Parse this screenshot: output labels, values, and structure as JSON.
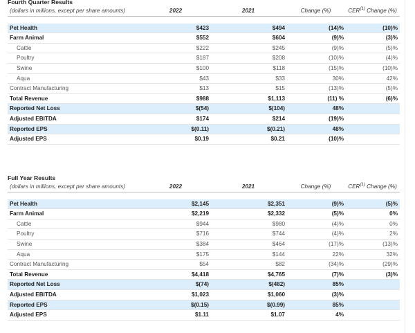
{
  "columns": {
    "y2022": "2022",
    "y2021": "2021",
    "change": "Change (%)",
    "cer_prefix": "CER",
    "cer_sup": "(1)",
    "cer_suffix": " Change (%)"
  },
  "quarter": {
    "title": "Fourth Quarter Results",
    "subtitle": "(dollars in millions, except per share amounts)",
    "rows": [
      {
        "label": "Pet Health",
        "y2022": "$423",
        "y2021": "$494",
        "change": "(14)%",
        "cer": "(10)%"
      },
      {
        "label": "Farm Animal",
        "y2022": "$552",
        "y2021": "$604",
        "change": "(9)%",
        "cer": "(3)%"
      },
      {
        "label": "Cattle",
        "y2022": "$222",
        "y2021": "$245",
        "change": "(9)%",
        "cer": "(5)%"
      },
      {
        "label": "Poultry",
        "y2022": "$187",
        "y2021": "$208",
        "change": "(10)%",
        "cer": "(4)%"
      },
      {
        "label": "Swine",
        "y2022": "$100",
        "y2021": "$118",
        "change": "(15)%",
        "cer": "(10)%"
      },
      {
        "label": "Aqua",
        "y2022": "$43",
        "y2021": "$33",
        "change": "30%",
        "cer": "42%"
      },
      {
        "label": "Contract Manufacturing",
        "y2022": "$13",
        "y2021": "$15",
        "change": "(13)%",
        "cer": "(5)%"
      },
      {
        "label": "Total Revenue",
        "y2022": "$988",
        "y2021": "$1,113",
        "change": "(11) %",
        "cer": "(6)%"
      },
      {
        "label": "Reported Net Loss",
        "y2022": "$(54)",
        "y2021": "$(104)",
        "change": "48%",
        "cer": ""
      },
      {
        "label": "Adjusted EBITDA",
        "y2022": "$174",
        "y2021": "$214",
        "change": "(19)%",
        "cer": ""
      },
      {
        "label": "Reported EPS",
        "y2022": "$(0.11)",
        "y2021": "$(0.21)",
        "change": "48%",
        "cer": ""
      },
      {
        "label": "Adjusted EPS",
        "y2022": "$0.19",
        "y2021": "$0.21",
        "change": "(10)%",
        "cer": ""
      }
    ]
  },
  "full_year": {
    "title": "Full Year Results",
    "subtitle": "(dollars in millions, except per share amounts)",
    "rows": [
      {
        "label": "Pet Health",
        "y2022": "$2,145",
        "y2021": "$2,351",
        "change": "(9)%",
        "cer": "(5)%"
      },
      {
        "label": "Farm Animal",
        "y2022": "$2,219",
        "y2021": "$2,332",
        "change": "(5)%",
        "cer": "0%"
      },
      {
        "label": "Cattle",
        "y2022": "$944",
        "y2021": "$980",
        "change": "(4)%",
        "cer": "0%"
      },
      {
        "label": "Poultry",
        "y2022": "$716",
        "y2021": "$744",
        "change": "(4)%",
        "cer": "2%"
      },
      {
        "label": "Swine",
        "y2022": "$384",
        "y2021": "$464",
        "change": "(17)%",
        "cer": "(13)%"
      },
      {
        "label": "Aqua",
        "y2022": "$175",
        "y2021": "$144",
        "change": "22%",
        "cer": "32%"
      },
      {
        "label": "Contract Manufacturing",
        "y2022": "$54",
        "y2021": "$82",
        "change": "(34)%",
        "cer": "(29)%"
      },
      {
        "label": "Total Revenue",
        "y2022": "$4,418",
        "y2021": "$4,765",
        "change": "(7)%",
        "cer": "(3)%"
      },
      {
        "label": "Reported Net Loss",
        "y2022": "$(74)",
        "y2021": "$(482)",
        "change": "85%",
        "cer": ""
      },
      {
        "label": "Adjusted EBITDA",
        "y2022": "$1,023",
        "y2021": "$1,060",
        "change": "(3)%",
        "cer": ""
      },
      {
        "label": "Reported EPS",
        "y2022": "$(0.15)",
        "y2021": "$(0.99)",
        "change": "85%",
        "cer": ""
      },
      {
        "label": "Adjusted EPS",
        "y2022": "$1.11",
        "y2021": "$1.07",
        "change": "4%",
        "cer": ""
      }
    ]
  },
  "colors": {
    "shade": "#dceefb",
    "rule": "#b9b9b9"
  }
}
